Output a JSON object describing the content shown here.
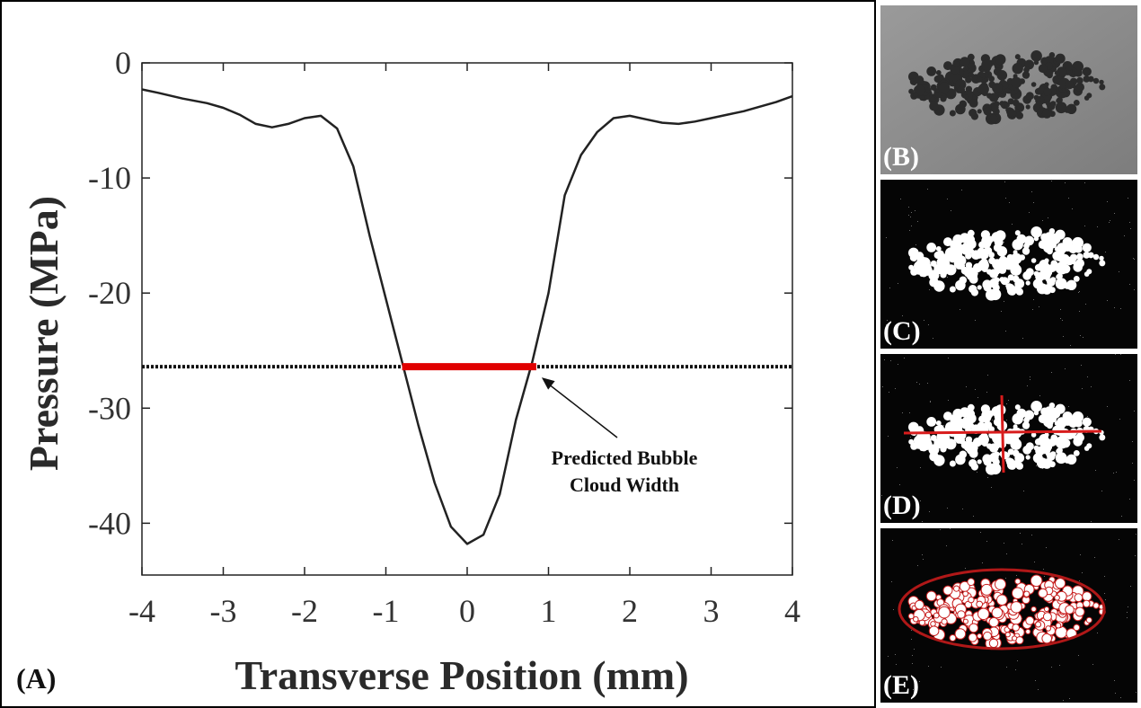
{
  "chart_data": {
    "type": "line",
    "panel_label": "(A)",
    "xlabel": "Transverse Position (mm)",
    "ylabel": "Pressure (MPa)",
    "xlim": [
      -4,
      4
    ],
    "ylim": [
      -44.5,
      0
    ],
    "xticks": [
      -4,
      -3,
      -2,
      -1,
      0,
      1,
      2,
      3,
      4
    ],
    "yticks": [
      0,
      -10,
      -20,
      -30,
      -40
    ],
    "grid": false,
    "series": [
      {
        "color": "#222222",
        "x": [
          -4.0,
          -3.8,
          -3.5,
          -3.2,
          -3.0,
          -2.8,
          -2.6,
          -2.4,
          -2.2,
          -2.0,
          -1.8,
          -1.6,
          -1.4,
          -1.2,
          -1.0,
          -0.8,
          -0.6,
          -0.4,
          -0.2,
          0.0,
          0.2,
          0.4,
          0.6,
          0.8,
          1.0,
          1.2,
          1.4,
          1.6,
          1.8,
          2.0,
          2.2,
          2.4,
          2.6,
          2.8,
          3.0,
          3.2,
          3.4,
          3.6,
          3.8,
          4.0
        ],
        "y": [
          -2.3,
          -2.6,
          -3.1,
          -3.5,
          -3.9,
          -4.5,
          -5.3,
          -5.6,
          -5.3,
          -4.8,
          -4.6,
          -5.7,
          -9.0,
          -15.0,
          -20.5,
          -26.0,
          -31.5,
          -36.5,
          -40.3,
          -41.8,
          -41.0,
          -37.5,
          -31.0,
          -26.0,
          -20.0,
          -11.5,
          -8.0,
          -6.0,
          -4.8,
          -4.6,
          -4.9,
          -5.2,
          -5.3,
          -5.1,
          -4.8,
          -4.5,
          -4.2,
          -3.8,
          -3.4,
          -2.9
        ]
      }
    ],
    "threshold": {
      "y": -26.4,
      "color": "#111111",
      "style": "dotted"
    },
    "highlight": {
      "x_start": -0.8,
      "x_end": 0.85,
      "y": -26.4,
      "color": "#e00000"
    },
    "annotation": {
      "lines": [
        "Predicted Bubble",
        "Cloud Width"
      ],
      "arrow_to": [
        0.85,
        -26.4
      ]
    }
  },
  "side_panels": [
    {
      "label": "(B)",
      "description_color": "#8c8c8c"
    },
    {
      "label": "(C)"
    },
    {
      "label": "(D)"
    },
    {
      "label": "(E)"
    }
  ]
}
